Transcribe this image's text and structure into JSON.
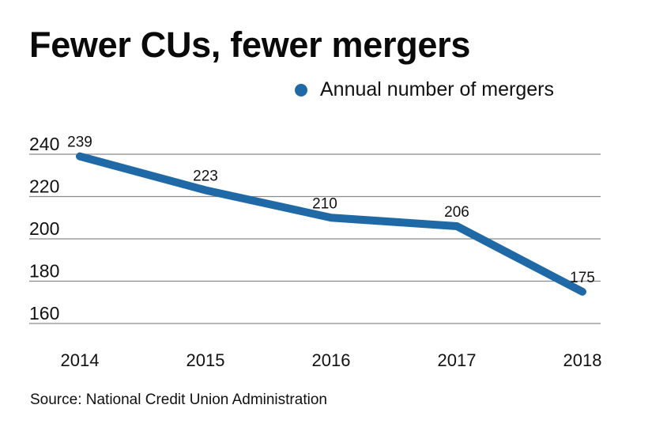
{
  "title": "Fewer CUs, fewer mergers",
  "legend": {
    "label": "Annual number of mergers",
    "color": "#1f6aa6"
  },
  "source": "Source: National Credit Union Administration",
  "chart_data": {
    "type": "line",
    "title": "Fewer CUs, fewer mergers",
    "xlabel": "",
    "ylabel": "",
    "categories": [
      "2014",
      "2015",
      "2016",
      "2017",
      "2018"
    ],
    "series": [
      {
        "name": "Annual number of mergers",
        "color": "#1f6aa6",
        "values": [
          239,
          223,
          210,
          206,
          175
        ]
      }
    ],
    "data_labels": [
      "239",
      "223",
      "210",
      "206",
      "175"
    ],
    "yticks": [
      240,
      220,
      200,
      180,
      160
    ],
    "ylim": [
      160,
      240
    ],
    "grid": true,
    "legend_position": "top-right",
    "source": "Source: National Credit Union Administration"
  }
}
